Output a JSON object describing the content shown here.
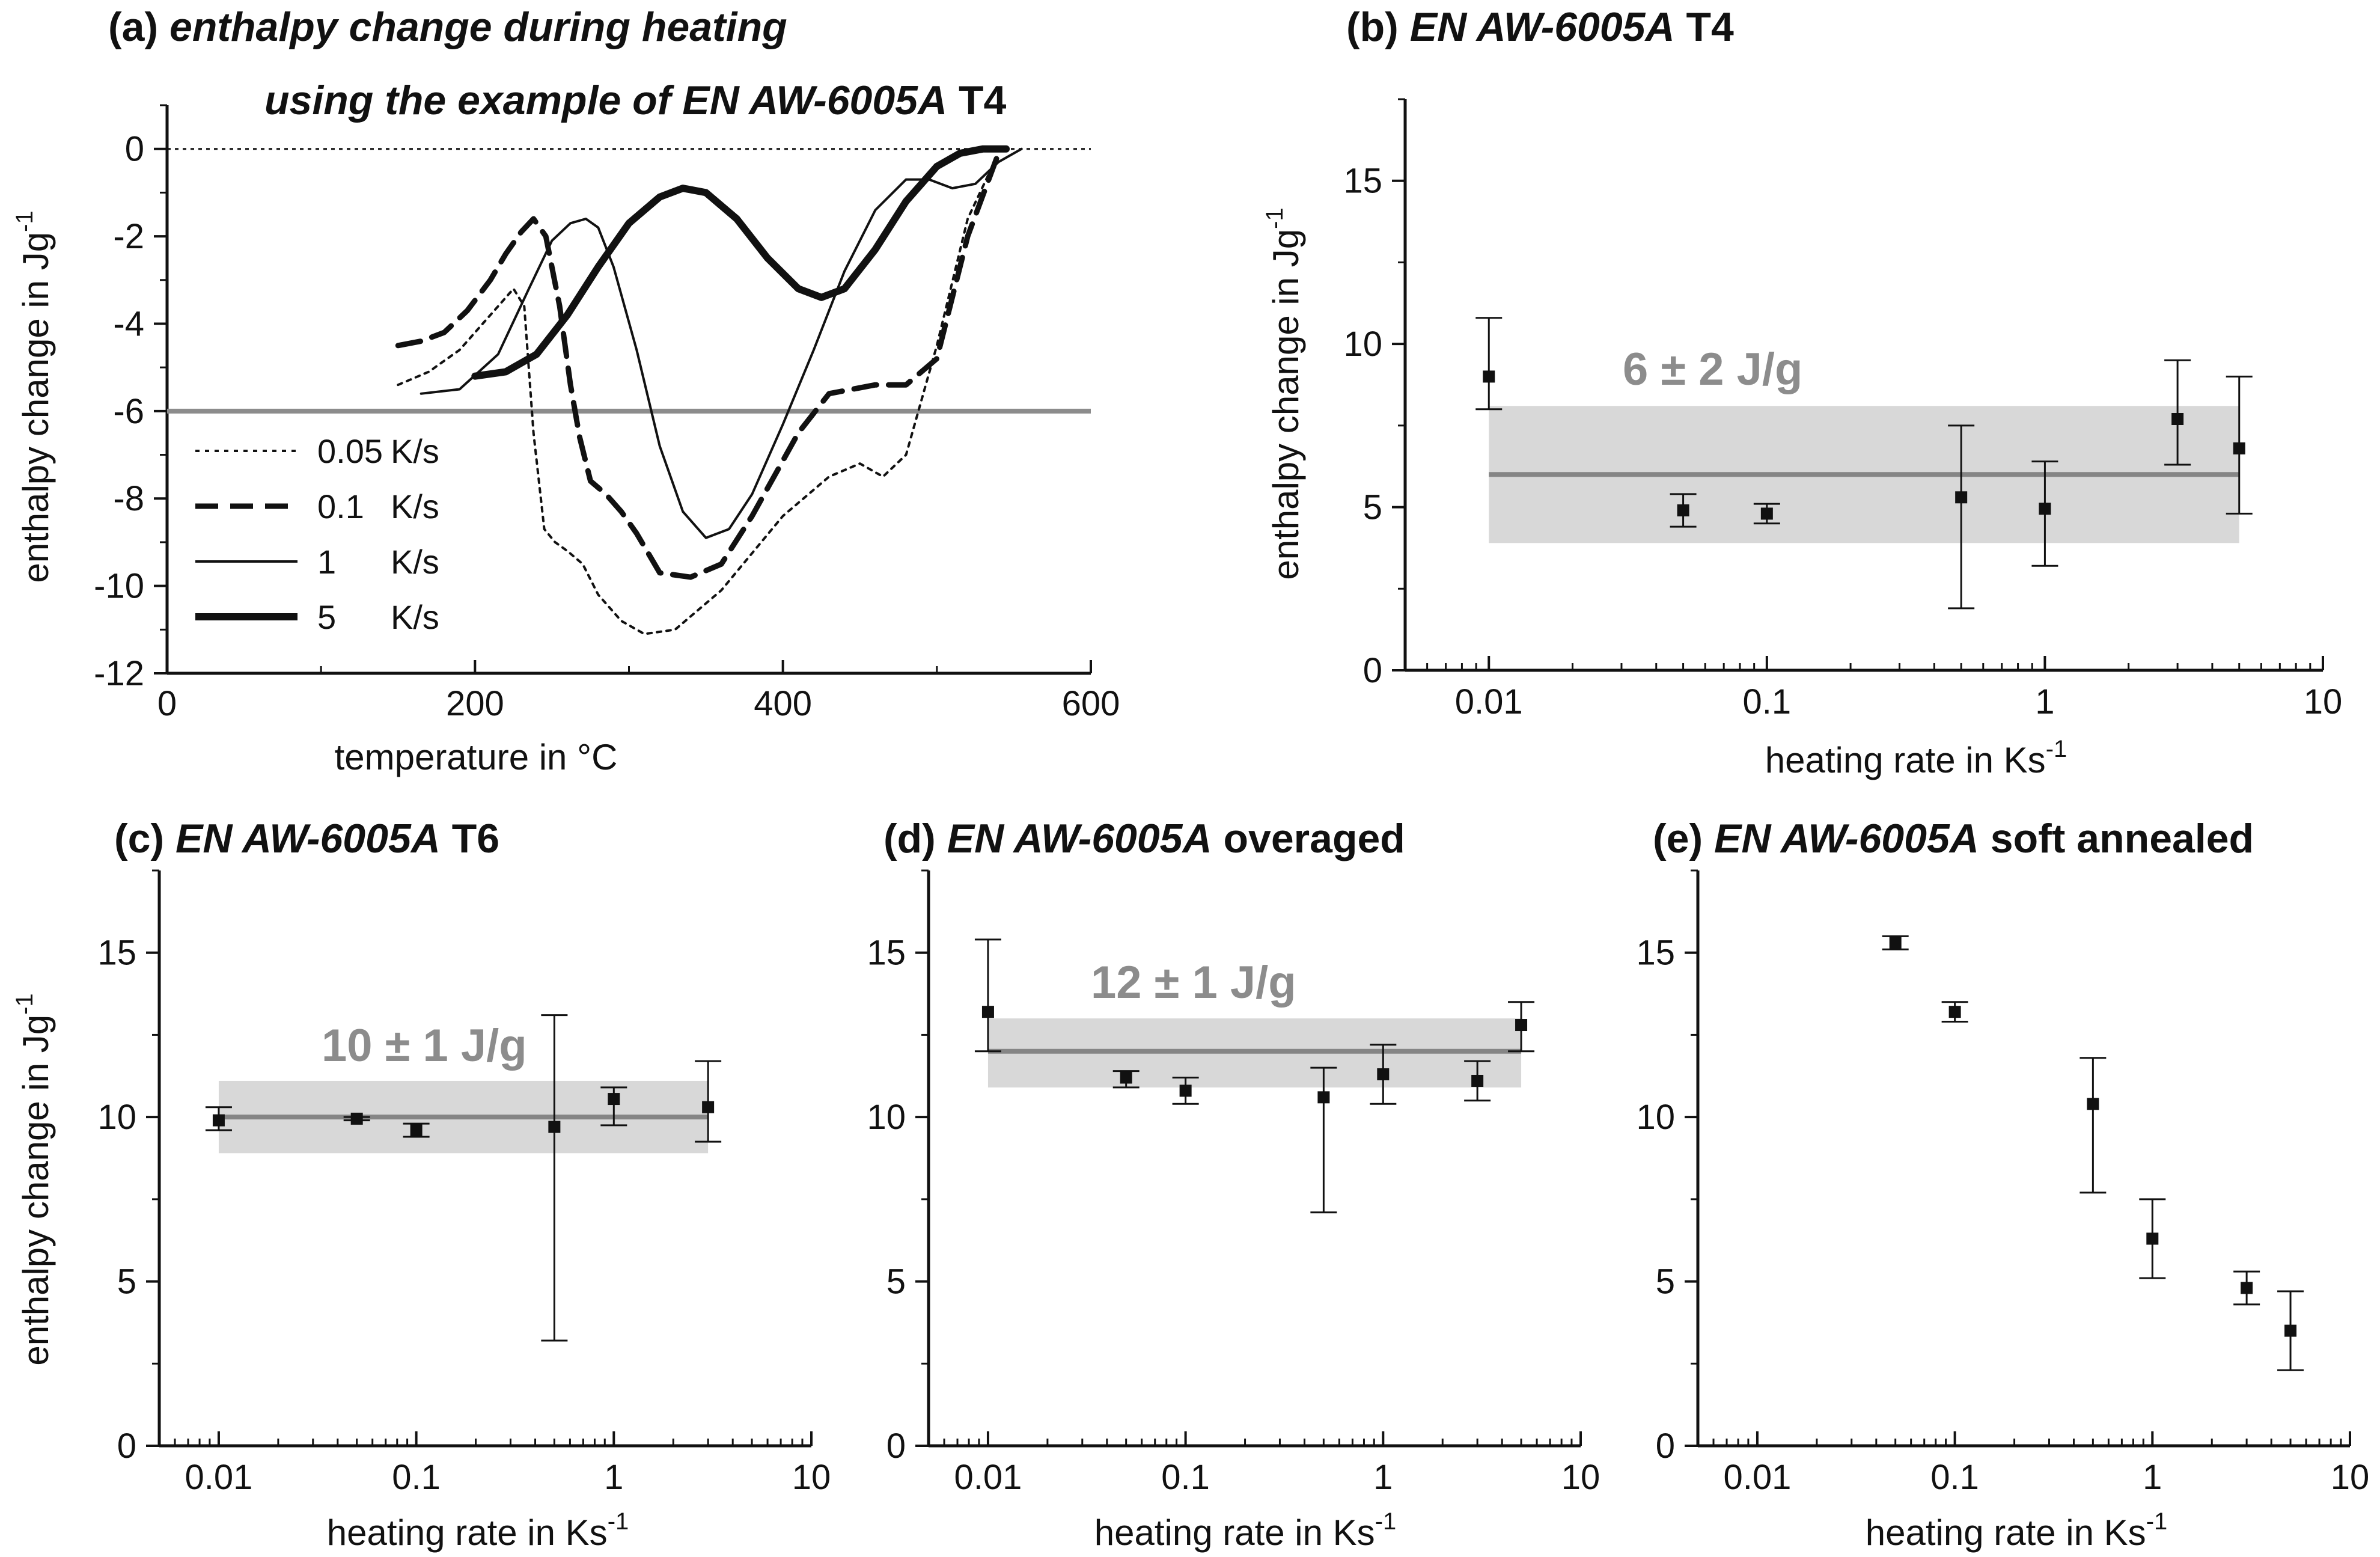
{
  "chart_data": [
    {
      "id": "a",
      "type": "line",
      "title_prefix": "(a) ",
      "title_line1": "enthalpy change during heating",
      "title_line2_italic": "using the example of EN AW-6005A",
      "title_line2_suffix": " T4",
      "xlabel": "temperature in °C",
      "ylabel": "enthalpy change in Jg",
      "ylabel_sup": "-1",
      "xlim": [
        0,
        600
      ],
      "ylim": [
        -12,
        1
      ],
      "xticks": [
        0,
        200,
        400,
        600
      ],
      "yticks": [
        0,
        -2,
        -4,
        -6,
        -8,
        -10,
        -12
      ],
      "hline_gray": -6,
      "hline_dotted": 0,
      "series": [
        {
          "name": "0.05 K/s",
          "rate": "0.05",
          "unit": "K/s",
          "style": "dotted",
          "x": [
            150,
            170,
            190,
            205,
            215,
            225,
            232,
            238,
            245,
            252,
            260,
            270,
            280,
            295,
            310,
            330,
            360,
            400,
            430,
            450,
            465,
            480,
            500,
            520,
            540
          ],
          "y": [
            -5.4,
            -5.1,
            -4.6,
            -4.0,
            -3.6,
            -3.2,
            -3.6,
            -6.5,
            -8.7,
            -9.0,
            -9.2,
            -9.5,
            -10.2,
            -10.8,
            -11.1,
            -11.0,
            -10.1,
            -8.4,
            -7.5,
            -7.2,
            -7.5,
            -7.0,
            -4.5,
            -1.6,
            -0.1
          ]
        },
        {
          "name": "0.1 K/s",
          "rate": "0.1",
          "unit": "K/s",
          "style": "dashed",
          "x": [
            150,
            165,
            180,
            195,
            210,
            220,
            230,
            238,
            246,
            255,
            262,
            268,
            275,
            285,
            295,
            305,
            320,
            340,
            360,
            380,
            410,
            430,
            460,
            480,
            500,
            520,
            540
          ],
          "y": [
            -4.5,
            -4.4,
            -4.2,
            -3.7,
            -3.0,
            -2.4,
            -1.9,
            -1.6,
            -2.0,
            -3.6,
            -5.4,
            -6.6,
            -7.6,
            -7.9,
            -8.3,
            -8.8,
            -9.7,
            -9.8,
            -9.5,
            -8.4,
            -6.5,
            -5.6,
            -5.4,
            -5.4,
            -4.8,
            -2.0,
            -0.1
          ]
        },
        {
          "name": "1 K/s",
          "rate": "1",
          "unit": "K/s",
          "style": "thin",
          "x": [
            165,
            190,
            215,
            235,
            250,
            262,
            272,
            280,
            290,
            305,
            320,
            335,
            350,
            365,
            380,
            400,
            420,
            440,
            460,
            480,
            495,
            510,
            525,
            540,
            555
          ],
          "y": [
            -5.6,
            -5.5,
            -4.7,
            -3.2,
            -2.1,
            -1.7,
            -1.6,
            -1.8,
            -2.7,
            -4.6,
            -6.8,
            -8.3,
            -8.9,
            -8.7,
            -7.9,
            -6.3,
            -4.6,
            -2.8,
            -1.4,
            -0.7,
            -0.7,
            -0.9,
            -0.8,
            -0.3,
            0.0
          ]
        },
        {
          "name": "5 K/s",
          "rate": "5",
          "unit": "K/s",
          "style": "thick",
          "x": [
            200,
            220,
            240,
            260,
            280,
            300,
            320,
            335,
            350,
            370,
            390,
            410,
            425,
            440,
            460,
            480,
            500,
            515,
            530,
            545
          ],
          "y": [
            -5.2,
            -5.1,
            -4.7,
            -3.8,
            -2.7,
            -1.7,
            -1.1,
            -0.9,
            -1.0,
            -1.6,
            -2.5,
            -3.2,
            -3.4,
            -3.2,
            -2.3,
            -1.2,
            -0.4,
            -0.1,
            0.0,
            0.0
          ]
        }
      ]
    },
    {
      "id": "b",
      "type": "scatter",
      "title_prefix": "(b) ",
      "title_italic": "EN AW-6005A",
      "title_suffix": " T4",
      "xlabel": "heating rate in Ks",
      "xlabel_sup": "-1",
      "ylabel": "enthalpy change in Jg",
      "ylabel_sup": "-1",
      "xscale": "log",
      "xlim": [
        0.005,
        10
      ],
      "ylim": [
        0,
        17.5
      ],
      "xticks": [
        0.01,
        0.1,
        1,
        10
      ],
      "xtick_labels": [
        "0.01",
        "0.1",
        "1",
        "10"
      ],
      "yticks": [
        0,
        5,
        10,
        15
      ],
      "x": [
        0.01,
        0.05,
        0.1,
        0.5,
        1,
        3,
        5
      ],
      "y": [
        9.0,
        4.9,
        4.8,
        5.3,
        4.95,
        7.7,
        6.8
      ],
      "yerr_low": [
        8.0,
        4.4,
        4.5,
        1.9,
        3.2,
        6.3,
        4.8
      ],
      "yerr_high": [
        10.8,
        5.4,
        5.1,
        7.5,
        6.4,
        9.5,
        9.0
      ],
      "band": {
        "x_from": 0.01,
        "x_to": 5,
        "mean": 6,
        "low": 3.9,
        "high": 8.1,
        "label": "6 ± 2 J/g"
      }
    },
    {
      "id": "c",
      "type": "scatter",
      "title_prefix": "(c) ",
      "title_italic": "EN AW-6005A",
      "title_suffix": " T6",
      "xlabel": "heating rate in Ks",
      "xlabel_sup": "-1",
      "ylabel": "enthalpy change in Jg",
      "ylabel_sup": "-1",
      "xscale": "log",
      "xlim": [
        0.005,
        10
      ],
      "ylim": [
        0,
        17.5
      ],
      "xticks": [
        0.01,
        0.1,
        1,
        10
      ],
      "xtick_labels": [
        "0.01",
        "0.1",
        "1",
        "10"
      ],
      "yticks": [
        0,
        5,
        10,
        15
      ],
      "x": [
        0.01,
        0.05,
        0.1,
        0.5,
        1,
        3
      ],
      "y": [
        9.9,
        9.95,
        9.6,
        9.7,
        10.55,
        10.3
      ],
      "yerr_low": [
        9.6,
        9.9,
        9.4,
        3.2,
        9.75,
        9.25
      ],
      "yerr_high": [
        10.3,
        10.0,
        9.8,
        13.1,
        10.9,
        11.7
      ],
      "band": {
        "x_from": 0.01,
        "x_to": 3,
        "mean": 10,
        "low": 8.9,
        "high": 11.1,
        "label": "10 ± 1 J/g"
      }
    },
    {
      "id": "d",
      "type": "scatter",
      "title_prefix": "(d) ",
      "title_italic": "EN AW-6005A",
      "title_suffix": " overaged",
      "xlabel": "heating rate in Ks",
      "xlabel_sup": "-1",
      "xscale": "log",
      "xlim": [
        0.005,
        10
      ],
      "ylim": [
        0,
        17.5
      ],
      "xticks": [
        0.01,
        0.1,
        1,
        10
      ],
      "xtick_labels": [
        "0.01",
        "0.1",
        "1",
        "10"
      ],
      "yticks": [
        0,
        5,
        10,
        15
      ],
      "x": [
        0.01,
        0.05,
        0.1,
        0.5,
        1,
        3,
        5
      ],
      "y": [
        13.2,
        11.2,
        10.8,
        10.6,
        11.3,
        11.1,
        12.8
      ],
      "yerr_low": [
        12.0,
        10.9,
        10.4,
        7.1,
        10.4,
        10.5,
        12.0
      ],
      "yerr_high": [
        15.4,
        11.4,
        11.2,
        11.5,
        12.2,
        11.7,
        13.5
      ],
      "band": {
        "x_from": 0.01,
        "x_to": 5,
        "mean": 12,
        "low": 10.9,
        "high": 13.0,
        "label": "12 ± 1 J/g"
      }
    },
    {
      "id": "e",
      "type": "scatter",
      "title_prefix": "(e) ",
      "title_italic": "EN AW-6005A",
      "title_suffix": " soft annealed",
      "xlabel": "heating rate in Ks",
      "xlabel_sup": "-1",
      "xscale": "log",
      "xlim": [
        0.005,
        10
      ],
      "ylim": [
        0,
        17.5
      ],
      "xticks": [
        0.01,
        0.1,
        1,
        10
      ],
      "xtick_labels": [
        "0.01",
        "0.1",
        "1",
        "10"
      ],
      "yticks": [
        0,
        5,
        10,
        15
      ],
      "x": [
        0.05,
        0.1,
        0.5,
        1,
        3,
        5
      ],
      "y": [
        15.3,
        13.2,
        10.4,
        6.3,
        4.8,
        3.5
      ],
      "yerr_low": [
        15.1,
        12.9,
        7.7,
        5.1,
        4.3,
        2.3
      ],
      "yerr_high": [
        15.5,
        13.5,
        11.8,
        7.5,
        5.3,
        4.7
      ]
    }
  ]
}
